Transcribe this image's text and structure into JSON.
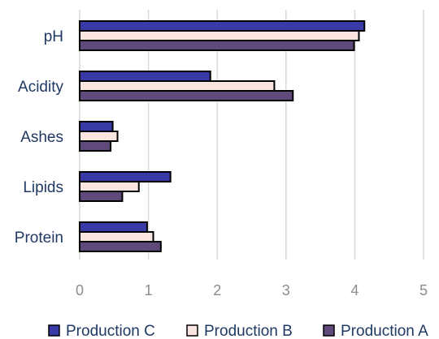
{
  "chart_data": {
    "type": "bar",
    "orientation": "horizontal",
    "categories": [
      "pH",
      "Acidity",
      "Ashes",
      "Lipids",
      "Protein"
    ],
    "series": [
      {
        "name": "Production C",
        "color": "#3a3aa6",
        "values": [
          4.14,
          1.9,
          0.48,
          1.32,
          0.98
        ]
      },
      {
        "name": "Production B",
        "color": "#fbe5e0",
        "values": [
          4.06,
          2.83,
          0.55,
          0.86,
          1.07
        ]
      },
      {
        "name": "Production A",
        "color": "#604a7b",
        "values": [
          3.99,
          3.1,
          0.45,
          0.62,
          1.18
        ]
      }
    ],
    "x_ticks": [
      "0",
      "1",
      "2",
      "3",
      "4",
      "5"
    ],
    "xlim": [
      0,
      5
    ],
    "grid": true,
    "legend": "bottom"
  }
}
